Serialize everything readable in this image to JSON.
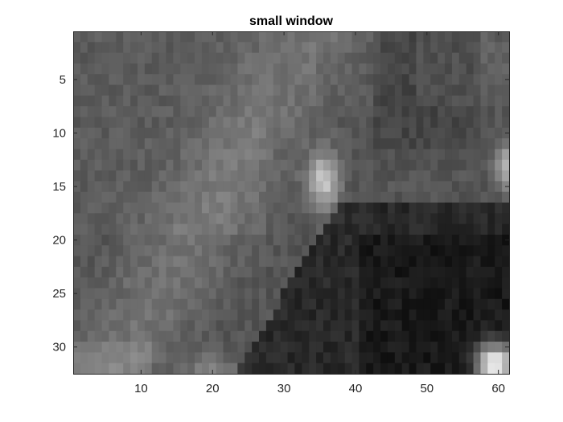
{
  "chart_data": {
    "type": "heatmap",
    "title": "small window",
    "xlabel": "",
    "ylabel": "",
    "colormap": "gray",
    "x_ticks": [
      10,
      20,
      30,
      40,
      50,
      60
    ],
    "y_ticks": [
      5,
      10,
      15,
      20,
      25,
      30
    ],
    "x_tick_labels": [
      "10",
      "20",
      "30",
      "40",
      "50",
      "60"
    ],
    "y_tick_labels": [
      "5",
      "10",
      "15",
      "20",
      "25",
      "30"
    ],
    "xlim": [
      0.5,
      61.5
    ],
    "ylim": [
      0.5,
      32.5
    ],
    "columns": 61,
    "rows": 32,
    "y_direction": "reverse",
    "intensity_range": [
      0,
      1
    ],
    "regions_note_values": {
      "background_level": 0.33,
      "dark_region_level": 0.1,
      "bright_blob_center": [
        35.5,
        14.5
      ],
      "bright_blob_peak": 0.75,
      "corner_blob_center": [
        59.5,
        31.5
      ],
      "corner_blob_peak": 1.0
    }
  },
  "colors": {
    "axes_edge": "#262626",
    "tick_label": "#262626",
    "title": "#000000",
    "background": "#ffffff"
  }
}
